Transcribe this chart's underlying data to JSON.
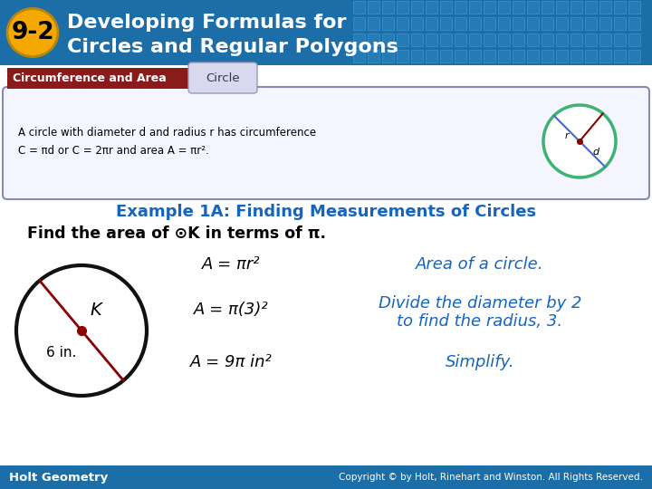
{
  "title_num": "9-2",
  "title_num_bg": "#F5A800",
  "title_text1": "Developing Formulas for",
  "title_text2": "Circles and Regular Polygons",
  "title_bg_color": "#1B6EA8",
  "title_fg_color": "#FFFFFF",
  "header_bar_color": "#8B1A1A",
  "header_text": "Circumference and Area",
  "header_fg": "#FFFFFF",
  "circle_tab_text": "Circle",
  "circle_tab_bg": "#D8D8EE",
  "theorem_line1": "A circle with diameter d and radius r has circumference",
  "theorem_line2": "C = πd or C = 2πr and area A = πr².",
  "example_heading": "Example 1A: Finding Measurements of Circles",
  "example_heading_color": "#1565C0",
  "find_text": "Find the area of ⊙K in terms of π.",
  "find_text_color": "#000000",
  "step1_lhs": "A = πr²",
  "step1_rhs": "Area of a circle.",
  "step2_lhs": "A = π(3)²",
  "step2_rhs1": "Divide the diameter by 2",
  "step2_rhs2": "to find the radius, 3.",
  "step3_lhs": "A = 9π in²",
  "step3_rhs": "Simplify.",
  "step_lhs_color": "#000000",
  "step_rhs_color": "#1565C0",
  "footer_bg": "#1B6EA8",
  "footer_left": "Holt Geometry",
  "footer_right": "Copyright © by Holt, Rinehart and Winston. All Rights Reserved.",
  "footer_color": "#FFFFFF",
  "circle_diagram_color": "#3CB371",
  "circle_dot_color": "#8B0000",
  "radius_line_color": "#8B0000",
  "diameter_line_color": "#4169E1",
  "tile_color1": "#2980B9",
  "tile_color2": "#3A9BD5"
}
